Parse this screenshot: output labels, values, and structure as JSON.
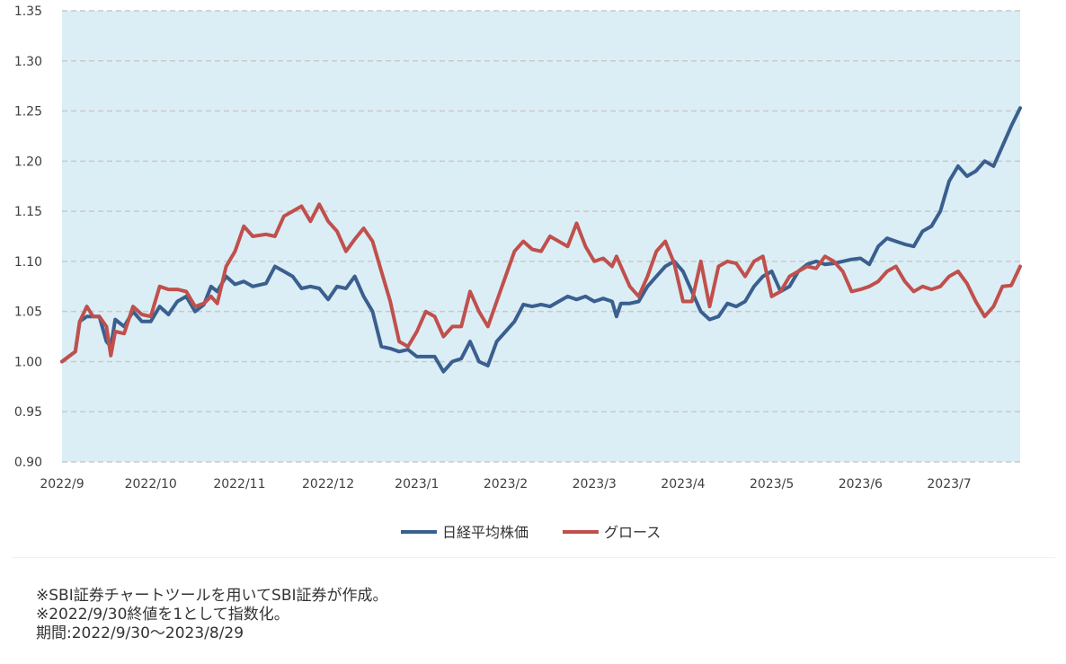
{
  "chart_data": {
    "type": "line",
    "x_ticks": [
      "2022/9",
      "2022/10",
      "2022/11",
      "2022/12",
      "2023/1",
      "2023/2",
      "2023/3",
      "2023/4",
      "2023/5",
      "2023/6",
      "2023/7"
    ],
    "y_ticks": [
      "1.35",
      "1.30",
      "1.25",
      "1.20",
      "1.15",
      "1.10",
      "1.05",
      "1.00",
      "0.95",
      "0.90"
    ],
    "ylim": [
      0.9,
      1.35
    ],
    "grid": "horizontal-dashed",
    "legend_position": "bottom",
    "x_months": [
      0,
      10.8
    ],
    "colors": {
      "nikkei": "#3a5f8f",
      "growth": "#c0504d",
      "plot_bg": "#dbeef5",
      "grid": "#c9c9c9"
    },
    "series": [
      {
        "name": "日経平均株価",
        "key": "nikkei",
        "points": [
          [
            0,
            1.0
          ],
          [
            0.15,
            1.01
          ],
          [
            0.2,
            1.04
          ],
          [
            0.28,
            1.045
          ],
          [
            0.35,
            1.045
          ],
          [
            0.42,
            1.045
          ],
          [
            0.5,
            1.02
          ],
          [
            0.55,
            1.015
          ],
          [
            0.6,
            1.042
          ],
          [
            0.7,
            1.035
          ],
          [
            0.8,
            1.05
          ],
          [
            0.9,
            1.04
          ],
          [
            1.0,
            1.04
          ],
          [
            1.1,
            1.055
          ],
          [
            1.2,
            1.047
          ],
          [
            1.3,
            1.06
          ],
          [
            1.4,
            1.065
          ],
          [
            1.5,
            1.05
          ],
          [
            1.6,
            1.057
          ],
          [
            1.68,
            1.075
          ],
          [
            1.75,
            1.07
          ],
          [
            1.85,
            1.085
          ],
          [
            1.95,
            1.077
          ],
          [
            2.05,
            1.08
          ],
          [
            2.15,
            1.075
          ],
          [
            2.3,
            1.078
          ],
          [
            2.4,
            1.095
          ],
          [
            2.5,
            1.09
          ],
          [
            2.6,
            1.085
          ],
          [
            2.7,
            1.073
          ],
          [
            2.8,
            1.075
          ],
          [
            2.9,
            1.073
          ],
          [
            3.0,
            1.062
          ],
          [
            3.1,
            1.075
          ],
          [
            3.2,
            1.073
          ],
          [
            3.3,
            1.085
          ],
          [
            3.4,
            1.065
          ],
          [
            3.5,
            1.05
          ],
          [
            3.6,
            1.015
          ],
          [
            3.7,
            1.013
          ],
          [
            3.8,
            1.01
          ],
          [
            3.9,
            1.012
          ],
          [
            4.0,
            1.005
          ],
          [
            4.1,
            1.005
          ],
          [
            4.2,
            1.005
          ],
          [
            4.3,
            0.99
          ],
          [
            4.4,
            1.0
          ],
          [
            4.5,
            1.003
          ],
          [
            4.6,
            1.02
          ],
          [
            4.7,
            1.0
          ],
          [
            4.8,
            0.996
          ],
          [
            4.9,
            1.02
          ],
          [
            5.0,
            1.03
          ],
          [
            5.1,
            1.04
          ],
          [
            5.2,
            1.057
          ],
          [
            5.3,
            1.055
          ],
          [
            5.4,
            1.057
          ],
          [
            5.5,
            1.055
          ],
          [
            5.6,
            1.06
          ],
          [
            5.7,
            1.065
          ],
          [
            5.8,
            1.062
          ],
          [
            5.9,
            1.065
          ],
          [
            6.0,
            1.06
          ],
          [
            6.1,
            1.063
          ],
          [
            6.2,
            1.06
          ],
          [
            6.25,
            1.045
          ],
          [
            6.3,
            1.058
          ],
          [
            6.4,
            1.058
          ],
          [
            6.5,
            1.06
          ],
          [
            6.6,
            1.075
          ],
          [
            6.7,
            1.085
          ],
          [
            6.8,
            1.095
          ],
          [
            6.9,
            1.1
          ],
          [
            7.0,
            1.09
          ],
          [
            7.1,
            1.07
          ],
          [
            7.2,
            1.05
          ],
          [
            7.3,
            1.042
          ],
          [
            7.4,
            1.045
          ],
          [
            7.5,
            1.058
          ],
          [
            7.6,
            1.055
          ],
          [
            7.7,
            1.06
          ],
          [
            7.8,
            1.075
          ],
          [
            7.9,
            1.085
          ],
          [
            8.0,
            1.09
          ],
          [
            8.1,
            1.07
          ],
          [
            8.2,
            1.075
          ],
          [
            8.3,
            1.09
          ],
          [
            8.4,
            1.097
          ],
          [
            8.5,
            1.1
          ],
          [
            8.6,
            1.097
          ],
          [
            8.7,
            1.098
          ],
          [
            8.8,
            1.1
          ],
          [
            8.9,
            1.102
          ],
          [
            9.0,
            1.103
          ],
          [
            9.1,
            1.097
          ],
          [
            9.2,
            1.115
          ],
          [
            9.3,
            1.123
          ],
          [
            9.4,
            1.12
          ],
          [
            9.5,
            1.117
          ],
          [
            9.6,
            1.115
          ],
          [
            9.7,
            1.13
          ],
          [
            9.8,
            1.135
          ],
          [
            9.9,
            1.15
          ],
          [
            10.0,
            1.18
          ],
          [
            10.1,
            1.195
          ],
          [
            10.2,
            1.185
          ],
          [
            10.3,
            1.19
          ],
          [
            10.4,
            1.2
          ],
          [
            10.5,
            1.195
          ],
          [
            10.6,
            1.215
          ],
          [
            10.7,
            1.235
          ],
          [
            10.8,
            1.253
          ]
        ]
      },
      {
        "name": "グロース",
        "key": "growth",
        "points": [
          [
            0,
            1.0
          ],
          [
            0.15,
            1.01
          ],
          [
            0.2,
            1.04
          ],
          [
            0.28,
            1.055
          ],
          [
            0.35,
            1.045
          ],
          [
            0.42,
            1.045
          ],
          [
            0.5,
            1.035
          ],
          [
            0.55,
            1.006
          ],
          [
            0.6,
            1.03
          ],
          [
            0.7,
            1.028
          ],
          [
            0.8,
            1.055
          ],
          [
            0.9,
            1.047
          ],
          [
            1.0,
            1.045
          ],
          [
            1.1,
            1.075
          ],
          [
            1.2,
            1.072
          ],
          [
            1.3,
            1.072
          ],
          [
            1.4,
            1.07
          ],
          [
            1.5,
            1.055
          ],
          [
            1.6,
            1.058
          ],
          [
            1.68,
            1.065
          ],
          [
            1.75,
            1.058
          ],
          [
            1.85,
            1.095
          ],
          [
            1.95,
            1.11
          ],
          [
            2.05,
            1.135
          ],
          [
            2.15,
            1.125
          ],
          [
            2.3,
            1.127
          ],
          [
            2.4,
            1.125
          ],
          [
            2.5,
            1.145
          ],
          [
            2.6,
            1.15
          ],
          [
            2.7,
            1.155
          ],
          [
            2.8,
            1.14
          ],
          [
            2.9,
            1.157
          ],
          [
            3.0,
            1.14
          ],
          [
            3.1,
            1.13
          ],
          [
            3.2,
            1.11
          ],
          [
            3.3,
            1.122
          ],
          [
            3.4,
            1.133
          ],
          [
            3.5,
            1.12
          ],
          [
            3.6,
            1.09
          ],
          [
            3.7,
            1.06
          ],
          [
            3.8,
            1.02
          ],
          [
            3.9,
            1.015
          ],
          [
            4.0,
            1.03
          ],
          [
            4.1,
            1.05
          ],
          [
            4.2,
            1.045
          ],
          [
            4.3,
            1.025
          ],
          [
            4.4,
            1.035
          ],
          [
            4.5,
            1.035
          ],
          [
            4.6,
            1.07
          ],
          [
            4.7,
            1.05
          ],
          [
            4.8,
            1.035
          ],
          [
            4.9,
            1.06
          ],
          [
            5.0,
            1.085
          ],
          [
            5.1,
            1.11
          ],
          [
            5.2,
            1.12
          ],
          [
            5.3,
            1.112
          ],
          [
            5.4,
            1.11
          ],
          [
            5.5,
            1.125
          ],
          [
            5.6,
            1.12
          ],
          [
            5.7,
            1.115
          ],
          [
            5.8,
            1.138
          ],
          [
            5.9,
            1.115
          ],
          [
            6.0,
            1.1
          ],
          [
            6.1,
            1.103
          ],
          [
            6.2,
            1.095
          ],
          [
            6.25,
            1.105
          ],
          [
            6.3,
            1.095
          ],
          [
            6.4,
            1.075
          ],
          [
            6.5,
            1.065
          ],
          [
            6.6,
            1.085
          ],
          [
            6.7,
            1.11
          ],
          [
            6.8,
            1.12
          ],
          [
            6.9,
            1.098
          ],
          [
            7.0,
            1.06
          ],
          [
            7.1,
            1.06
          ],
          [
            7.2,
            1.1
          ],
          [
            7.3,
            1.055
          ],
          [
            7.4,
            1.095
          ],
          [
            7.5,
            1.1
          ],
          [
            7.6,
            1.098
          ],
          [
            7.7,
            1.085
          ],
          [
            7.8,
            1.1
          ],
          [
            7.9,
            1.105
          ],
          [
            8.0,
            1.065
          ],
          [
            8.1,
            1.07
          ],
          [
            8.2,
            1.085
          ],
          [
            8.3,
            1.09
          ],
          [
            8.4,
            1.095
          ],
          [
            8.5,
            1.093
          ],
          [
            8.6,
            1.105
          ],
          [
            8.7,
            1.1
          ],
          [
            8.8,
            1.09
          ],
          [
            8.9,
            1.07
          ],
          [
            9.0,
            1.072
          ],
          [
            9.1,
            1.075
          ],
          [
            9.2,
            1.08
          ],
          [
            9.3,
            1.09
          ],
          [
            9.4,
            1.095
          ],
          [
            9.5,
            1.08
          ],
          [
            9.6,
            1.07
          ],
          [
            9.7,
            1.075
          ],
          [
            9.8,
            1.072
          ],
          [
            9.9,
            1.075
          ],
          [
            10.0,
            1.085
          ],
          [
            10.1,
            1.09
          ],
          [
            10.2,
            1.078
          ],
          [
            10.3,
            1.06
          ],
          [
            10.4,
            1.045
          ],
          [
            10.5,
            1.055
          ],
          [
            10.6,
            1.075
          ],
          [
            10.7,
            1.076
          ],
          [
            10.8,
            1.095
          ]
        ]
      }
    ]
  },
  "notes": [
    "※SBI証券チャートツールを用いてSBI証券が作成。",
    "※2022/9/30終値を1として指数化。",
    "期間:2022/9/30～2023/8/29"
  ]
}
